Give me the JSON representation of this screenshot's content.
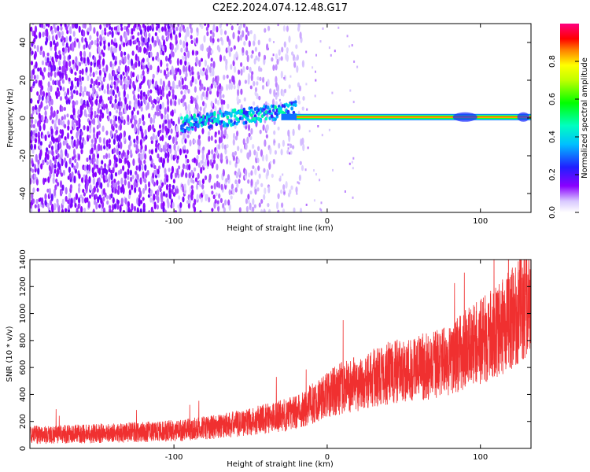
{
  "title": "C2E2.2024.074.12.48.G17",
  "chart_data": [
    {
      "type": "heatmap",
      "xlabel": "Height of straight line (km)",
      "ylabel": "Frequency (Hz)",
      "xlim": [
        -194,
        133
      ],
      "ylim": [
        -50,
        50
      ],
      "x_ticks": [
        -100,
        0,
        100
      ],
      "y_ticks": [
        -40,
        -20,
        0,
        20,
        40
      ],
      "grid": false,
      "colorbar": {
        "label": "Normalized spectral amplitude",
        "range": [
          0.0,
          1.0
        ],
        "ticks": [
          0.0,
          0.2,
          0.4,
          0.6,
          0.8
        ],
        "colormap": "white-purple-blue-cyan-green-yellow-red-magenta"
      },
      "features": {
        "noise_region_x": [
          -194,
          -40
        ],
        "signal_line_frequency_hz": 0.5,
        "signal_line_x": [
          -40,
          133
        ],
        "signal_peak_amplitude": 0.9
      }
    },
    {
      "type": "line",
      "xlabel": "Height of straight line (km)",
      "ylabel": "SNR (10 * v/v)",
      "xlim": [
        -194,
        133
      ],
      "ylim": [
        0,
        1400
      ],
      "x_ticks": [
        -100,
        0,
        100
      ],
      "y_ticks": [
        0,
        200,
        400,
        600,
        800,
        1000,
        1200,
        1400
      ],
      "grid": false,
      "series": [
        {
          "color": "#f03030",
          "x": [
            -194,
            -170,
            -140,
            -110,
            -90,
            -70,
            -50,
            -30,
            -20,
            -10,
            0,
            10,
            20,
            40,
            60,
            70,
            80,
            90,
            100,
            110,
            120,
            130
          ],
          "y": [
            100,
            105,
            115,
            125,
            140,
            165,
            200,
            240,
            270,
            330,
            400,
            450,
            480,
            560,
            600,
            620,
            650,
            730,
            790,
            860,
            960,
            1100
          ]
        }
      ]
    }
  ]
}
